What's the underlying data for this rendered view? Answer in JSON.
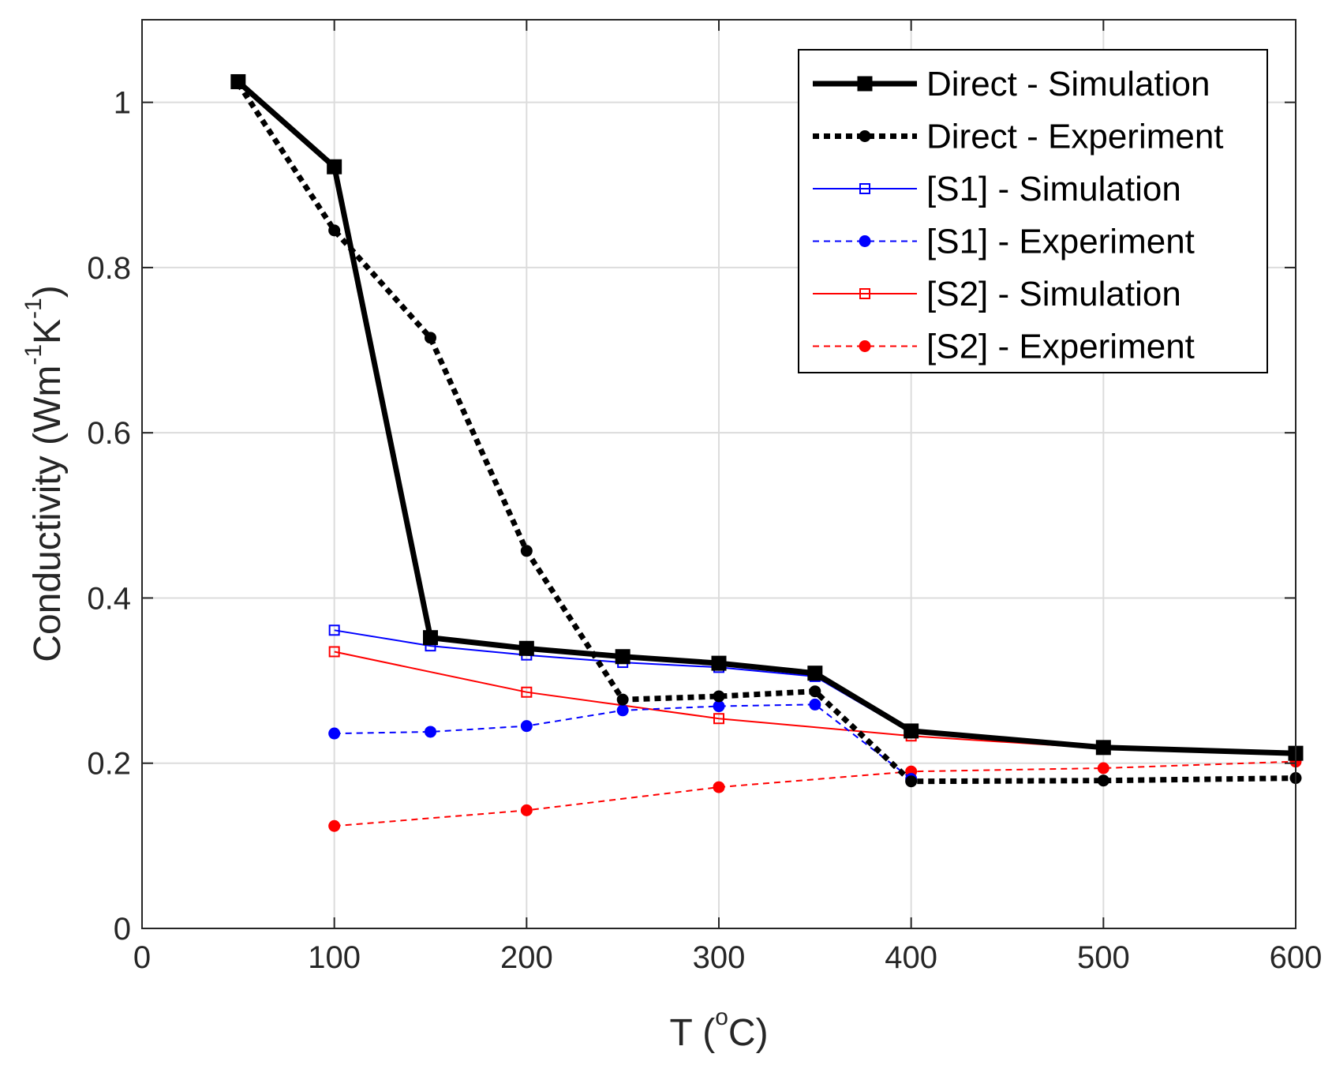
{
  "chart_data": {
    "type": "line",
    "title": "",
    "xlabel": {
      "main": "T (",
      "superscript": "o",
      "unit": "C)"
    },
    "ylabel": {
      "parts": [
        {
          "text": "Conductivity (Wm",
          "sup": false
        },
        {
          "text": "-1",
          "sup": true
        },
        {
          "text": "K",
          "sup": false
        },
        {
          "text": "-1",
          "sup": true
        },
        {
          "text": ")",
          "sup": false
        }
      ]
    },
    "xlim": [
      0,
      600
    ],
    "ylim": [
      0,
      1.1
    ],
    "xticks": [
      0,
      100,
      200,
      300,
      400,
      500,
      600
    ],
    "xtick_labels": [
      "0",
      "100",
      "200",
      "300",
      "400",
      "500",
      "600"
    ],
    "yticks": [
      0,
      0.2,
      0.4,
      0.6,
      0.8,
      1
    ],
    "ytick_labels": [
      "0",
      "0.2",
      "0.4",
      "0.6",
      "0.8",
      "1"
    ],
    "grid": true,
    "legend_position": "top-right",
    "series": [
      {
        "name": "Direct - Simulation",
        "color": "#000000",
        "line": "solid",
        "weight": "thick",
        "marker": "filled-square",
        "x": [
          50,
          100,
          150,
          200,
          250,
          300,
          350,
          400,
          500,
          600
        ],
        "y": [
          1.025,
          0.922,
          0.352,
          0.339,
          0.329,
          0.321,
          0.309,
          0.239,
          0.219,
          0.212
        ]
      },
      {
        "name": "Direct - Experiment",
        "color": "#000000",
        "line": "dotted",
        "weight": "thick",
        "marker": "filled-circle",
        "x": [
          50,
          100,
          150,
          200,
          250,
          300,
          350,
          400,
          500,
          600
        ],
        "y": [
          1.023,
          0.845,
          0.715,
          0.457,
          0.277,
          0.281,
          0.287,
          0.178,
          0.179,
          0.182
        ]
      },
      {
        "name": "[S1] - Simulation",
        "color": "#0000ff",
        "line": "solid",
        "weight": "thin",
        "marker": "open-square",
        "x": [
          100,
          150,
          200,
          250,
          300,
          350,
          400,
          500,
          600
        ],
        "y": [
          0.361,
          0.342,
          0.331,
          0.322,
          0.316,
          0.305,
          0.237,
          0.218,
          0.211
        ]
      },
      {
        "name": "[S1] - Experiment",
        "color": "#0000ff",
        "line": "dashed",
        "weight": "thin",
        "marker": "filled-circle",
        "x": [
          100,
          150,
          200,
          250,
          300,
          350,
          400
        ],
        "y": [
          0.236,
          0.238,
          0.245,
          0.264,
          0.269,
          0.271,
          0.181
        ]
      },
      {
        "name": "[S2] - Simulation",
        "color": "#ff0000",
        "line": "solid",
        "weight": "thin",
        "marker": "open-square",
        "x": [
          100,
          200,
          300,
          400,
          500,
          600
        ],
        "y": [
          0.335,
          0.286,
          0.254,
          0.233,
          0.218,
          0.211
        ]
      },
      {
        "name": "[S2] - Experiment",
        "color": "#ff0000",
        "line": "dashed",
        "weight": "thin",
        "marker": "filled-circle",
        "x": [
          100,
          200,
          300,
          400,
          500,
          600
        ],
        "y": [
          0.124,
          0.143,
          0.171,
          0.19,
          0.194,
          0.202
        ]
      }
    ]
  }
}
